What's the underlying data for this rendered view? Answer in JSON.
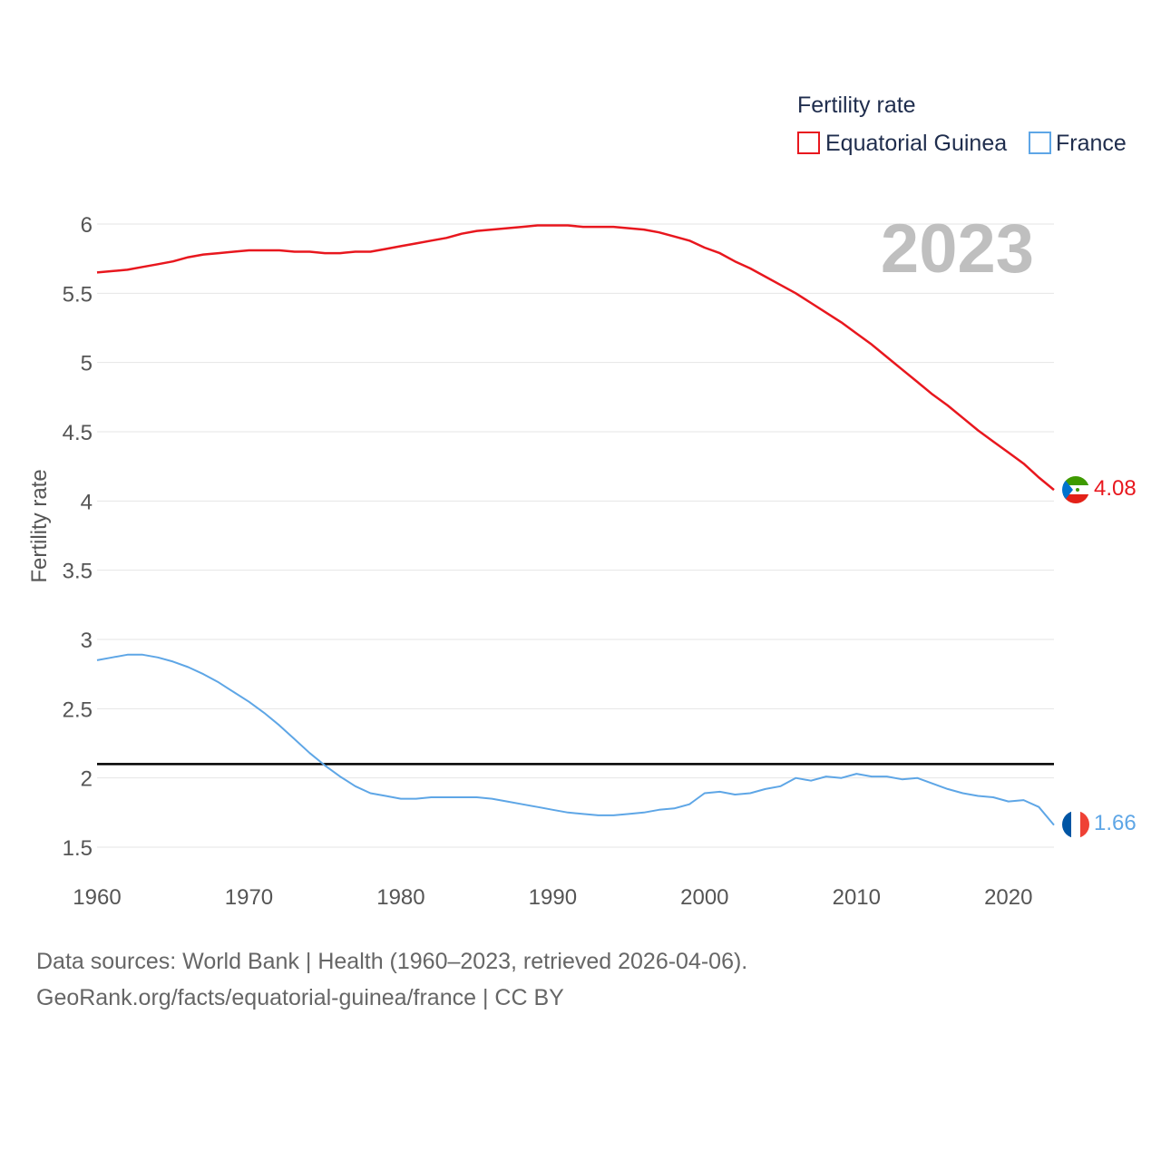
{
  "chart_data": {
    "type": "line",
    "ylabel": "Fertility rate",
    "xlabel": "",
    "xlim": [
      1960,
      2023
    ],
    "ylim": [
      1.5,
      6
    ],
    "x_ticks": [
      "1960",
      "1970",
      "1980",
      "1990",
      "2000",
      "2010",
      "2020"
    ],
    "y_ticks": [
      "1.5",
      "2",
      "2.5",
      "3",
      "3.5",
      "4",
      "4.5",
      "5",
      "5.5",
      "6"
    ],
    "current_year": "2023",
    "reference_line": {
      "value": 2.1,
      "color": "#000000"
    },
    "legend": {
      "title": "Fertility rate",
      "position": "top-right"
    },
    "x": [
      1960,
      1961,
      1962,
      1963,
      1964,
      1965,
      1966,
      1967,
      1968,
      1969,
      1970,
      1971,
      1972,
      1973,
      1974,
      1975,
      1976,
      1977,
      1978,
      1979,
      1980,
      1981,
      1982,
      1983,
      1984,
      1985,
      1986,
      1987,
      1988,
      1989,
      1990,
      1991,
      1992,
      1993,
      1994,
      1995,
      1996,
      1997,
      1998,
      1999,
      2000,
      2001,
      2002,
      2003,
      2004,
      2005,
      2006,
      2007,
      2008,
      2009,
      2010,
      2011,
      2012,
      2013,
      2014,
      2015,
      2016,
      2017,
      2018,
      2019,
      2020,
      2021,
      2022,
      2023
    ],
    "series": [
      {
        "name": "Equatorial Guinea",
        "color": "#e8171e",
        "end_label": "4.08",
        "values": [
          5.65,
          5.66,
          5.67,
          5.69,
          5.71,
          5.73,
          5.76,
          5.78,
          5.79,
          5.8,
          5.81,
          5.81,
          5.81,
          5.8,
          5.8,
          5.79,
          5.79,
          5.8,
          5.8,
          5.82,
          5.84,
          5.86,
          5.88,
          5.9,
          5.93,
          5.95,
          5.96,
          5.97,
          5.98,
          5.99,
          5.99,
          5.99,
          5.98,
          5.98,
          5.98,
          5.97,
          5.96,
          5.94,
          5.91,
          5.88,
          5.83,
          5.79,
          5.73,
          5.68,
          5.62,
          5.56,
          5.5,
          5.43,
          5.36,
          5.29,
          5.21,
          5.13,
          5.04,
          4.95,
          4.86,
          4.77,
          4.69,
          4.6,
          4.51,
          4.43,
          4.35,
          4.27,
          4.17,
          4.08
        ]
      },
      {
        "name": "France",
        "color": "#5ea6e6",
        "end_label": "1.66",
        "values": [
          2.85,
          2.87,
          2.89,
          2.89,
          2.87,
          2.84,
          2.8,
          2.75,
          2.69,
          2.62,
          2.55,
          2.47,
          2.38,
          2.28,
          2.18,
          2.09,
          2.01,
          1.94,
          1.89,
          1.87,
          1.85,
          1.85,
          1.86,
          1.86,
          1.86,
          1.86,
          1.85,
          1.83,
          1.81,
          1.79,
          1.77,
          1.75,
          1.74,
          1.73,
          1.73,
          1.74,
          1.75,
          1.77,
          1.78,
          1.81,
          1.89,
          1.9,
          1.88,
          1.89,
          1.92,
          1.94,
          2.0,
          1.98,
          2.01,
          2.0,
          2.03,
          2.01,
          2.01,
          1.99,
          2.0,
          1.96,
          1.92,
          1.89,
          1.87,
          1.86,
          1.83,
          1.84,
          1.79,
          1.66
        ]
      }
    ]
  },
  "source": {
    "line1": "Data sources: World Bank | Health (1960–2023, retrieved 2026-04-06).",
    "line2": "GeoRank.org/facts/equatorial-guinea/france | CC BY"
  }
}
